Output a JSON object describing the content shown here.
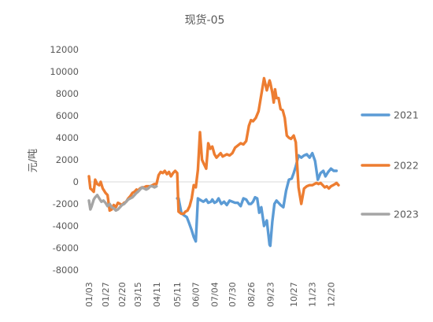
{
  "chart_data": {
    "type": "line",
    "title": "现货-05",
    "ylabel": "元/吨",
    "xlabel": "",
    "ylim": [
      -8000,
      12000
    ],
    "yticks": [
      12000,
      10000,
      8000,
      6000,
      4000,
      2000,
      0,
      -2000,
      -4000,
      -6000,
      -8000
    ],
    "xlim": [
      "01/03",
      "12/31"
    ],
    "xticks": [
      "01/03",
      "01/27",
      "02/20",
      "03/15",
      "04/11",
      "05/11",
      "06/07",
      "07/04",
      "07/30",
      "08/26",
      "09/23",
      "10/27",
      "11/23",
      "12/20"
    ],
    "grid": false,
    "legend_position": "right",
    "series": [
      {
        "name": "2021",
        "color": "#5B9BD5",
        "x": [
          "05/11",
          "05/13",
          "05/17",
          "05/20",
          "05/25",
          "05/28",
          "06/01",
          "06/04",
          "06/07",
          "06/10",
          "06/15",
          "06/18",
          "06/22",
          "06/25",
          "06/29",
          "07/01",
          "07/04",
          "07/07",
          "07/10",
          "07/14",
          "07/18",
          "07/22",
          "07/26",
          "07/30",
          "08/03",
          "08/07",
          "08/11",
          "08/15",
          "08/19",
          "08/23",
          "08/26",
          "08/29",
          "09/01",
          "09/04",
          "09/07",
          "09/10",
          "09/14",
          "09/18",
          "09/22",
          "09/23",
          "09/26",
          "09/29",
          "10/02",
          "10/05",
          "10/08",
          "10/12",
          "10/16",
          "10/20",
          "10/24",
          "10/27",
          "10/30",
          "11/03",
          "11/07",
          "11/11",
          "11/15",
          "11/19",
          "11/23",
          "11/27",
          "12/01",
          "12/05",
          "12/09",
          "12/12",
          "12/16",
          "12/20",
          "12/24",
          "12/28"
        ],
        "values": [
          -1500,
          -1500,
          -2800,
          -3000,
          -3200,
          -3700,
          -4400,
          -5000,
          -5400,
          -1500,
          -1700,
          -1800,
          -1600,
          -1900,
          -1800,
          -1600,
          -1900,
          -1800,
          -1500,
          -2000,
          -1800,
          -2100,
          -1700,
          -1800,
          -1900,
          -1900,
          -2200,
          -1500,
          -1600,
          -2000,
          -2000,
          -1800,
          -1400,
          -1500,
          -2800,
          -2300,
          -4000,
          -3500,
          -5700,
          -5800,
          -3600,
          -2000,
          -1700,
          -1900,
          -2100,
          -2300,
          -800,
          200,
          300,
          800,
          1400,
          2400,
          2200,
          2400,
          2500,
          2200,
          2600,
          1900,
          200,
          800,
          1000,
          500,
          900,
          1200,
          1000,
          1000
        ]
      },
      {
        "name": "2022",
        "color": "#ED7D31",
        "x": [
          "01/03",
          "01/05",
          "01/07",
          "01/10",
          "01/12",
          "01/15",
          "01/18",
          "01/20",
          "01/23",
          "01/25",
          "01/27",
          "01/30",
          "02/02",
          "02/05",
          "02/08",
          "02/11",
          "02/14",
          "02/17",
          "02/20",
          "02/23",
          "02/26",
          "03/01",
          "03/04",
          "03/07",
          "03/10",
          "03/13",
          "03/15",
          "03/18",
          "03/21",
          "03/24",
          "03/27",
          "03/30",
          "04/02",
          "04/05",
          "04/08",
          "04/11",
          "04/14",
          "04/17",
          "04/20",
          "04/23",
          "04/26",
          "04/29",
          "05/02",
          "05/05",
          "05/08",
          "05/11",
          "05/13",
          "05/15",
          "05/17",
          "05/20",
          "05/23",
          "05/26",
          "05/29",
          "06/01",
          "06/04",
          "06/07",
          "06/10",
          "06/13",
          "06/16",
          "06/19",
          "06/22",
          "06/25",
          "06/28",
          "07/01",
          "07/04",
          "07/07",
          "07/10",
          "07/13",
          "07/16",
          "07/19",
          "07/22",
          "07/26",
          "07/30",
          "08/03",
          "08/07",
          "08/11",
          "08/15",
          "08/19",
          "08/23",
          "08/26",
          "08/29",
          "09/02",
          "09/06",
          "09/10",
          "09/14",
          "09/18",
          "09/22",
          "09/23",
          "09/26",
          "09/28",
          "09/30",
          "10/02",
          "10/05",
          "10/08",
          "10/11",
          "10/14",
          "10/17",
          "10/20",
          "10/23",
          "10/27",
          "10/30",
          "11/03",
          "11/07",
          "11/11",
          "11/15",
          "11/19",
          "11/23",
          "11/26",
          "11/29",
          "12/02",
          "12/05",
          "12/08",
          "12/11",
          "12/14",
          "12/17",
          "12/20",
          "12/23",
          "12/26",
          "12/28",
          "12/31"
        ],
        "values": [
          500,
          -600,
          -700,
          -900,
          200,
          -200,
          -300,
          0,
          -600,
          -800,
          -1000,
          -1200,
          -2600,
          -2500,
          -2100,
          -2300,
          -1900,
          -2000,
          -2100,
          -1900,
          -1800,
          -1500,
          -1300,
          -1000,
          -900,
          -700,
          -800,
          -600,
          -500,
          -500,
          -400,
          -400,
          -400,
          -300,
          -200,
          -200,
          600,
          900,
          800,
          1000,
          700,
          900,
          500,
          800,
          1000,
          800,
          -2700,
          -2800,
          -2900,
          -2900,
          -2700,
          -2600,
          -2200,
          -1500,
          -300,
          -500,
          1100,
          4500,
          2000,
          1600,
          1200,
          3500,
          3000,
          3200,
          2500,
          2200,
          2400,
          2600,
          2300,
          2400,
          2500,
          2400,
          2600,
          3100,
          3300,
          3500,
          3400,
          3700,
          5100,
          5600,
          5500,
          5800,
          6400,
          7900,
          9400,
          8300,
          9200,
          9000,
          8100,
          7200,
          8400,
          7600,
          7600,
          6600,
          6500,
          5800,
          4200,
          4000,
          3900,
          4200,
          3600,
          -500,
          -2000,
          -600,
          -400,
          -300,
          -300,
          -200,
          -100,
          -200,
          -100,
          -300,
          -500,
          -400,
          -600,
          -400,
          -300,
          -200,
          -100,
          -300
        ]
      },
      {
        "name": "2023",
        "color": "#A5A5A5",
        "x": [
          "01/03",
          "01/05",
          "01/07",
          "01/10",
          "01/12",
          "01/15",
          "01/18",
          "01/21",
          "01/24",
          "01/27",
          "01/30",
          "02/02",
          "02/05",
          "02/08",
          "02/11",
          "02/14",
          "02/17",
          "02/20",
          "02/23",
          "02/26",
          "03/01",
          "03/04",
          "03/07",
          "03/10",
          "03/13",
          "03/15",
          "03/18",
          "03/21",
          "03/24",
          "03/27",
          "03/30",
          "04/02",
          "04/05",
          "04/08",
          "04/11"
        ],
        "values": [
          -1700,
          -2500,
          -2200,
          -1600,
          -1400,
          -1200,
          -1500,
          -1800,
          -1700,
          -1900,
          -2200,
          -2000,
          -2300,
          -2400,
          -2600,
          -2500,
          -2300,
          -2100,
          -2000,
          -1800,
          -1600,
          -1500,
          -1400,
          -1200,
          -1000,
          -900,
          -700,
          -500,
          -600,
          -700,
          -600,
          -400,
          -400,
          -500,
          -400
        ]
      }
    ]
  }
}
